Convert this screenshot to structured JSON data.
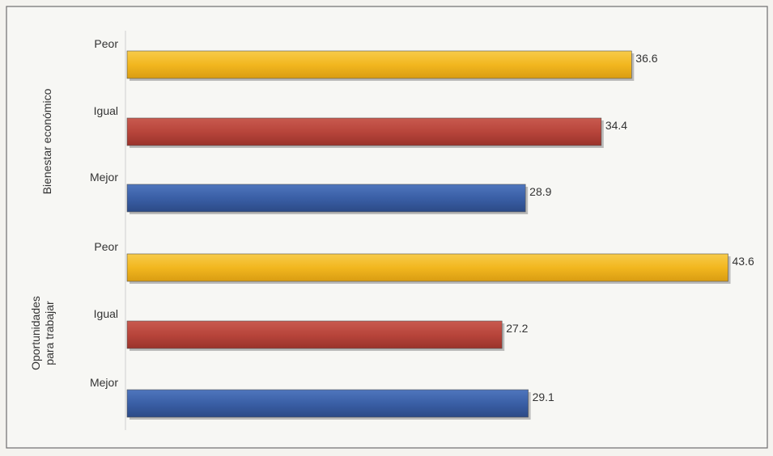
{
  "chart_data": {
    "type": "bar",
    "orientation": "horizontal",
    "title": "",
    "xlabel": "",
    "ylabel": "",
    "xlim": [
      0,
      45
    ],
    "grid": false,
    "legend": "none",
    "groups": [
      {
        "label": "Bienestar económico",
        "categories": [
          "Peor",
          "Igual",
          "Mejor"
        ],
        "values": [
          36.6,
          34.4,
          28.9
        ],
        "value_labels": [
          "36.6",
          "34.4",
          "28.9"
        ]
      },
      {
        "label_lines": [
          "Oportunidades",
          "para trabajar"
        ],
        "categories": [
          "Peor",
          "Igual",
          "Mejor"
        ],
        "values": [
          43.6,
          27.2,
          29.1
        ],
        "value_labels": [
          "43.6",
          "27.2",
          "29.1"
        ]
      }
    ],
    "colors": {
      "Peor": "#f2b71f",
      "Igual": "#b8453b",
      "Mejor": "#3a5fa6"
    }
  }
}
